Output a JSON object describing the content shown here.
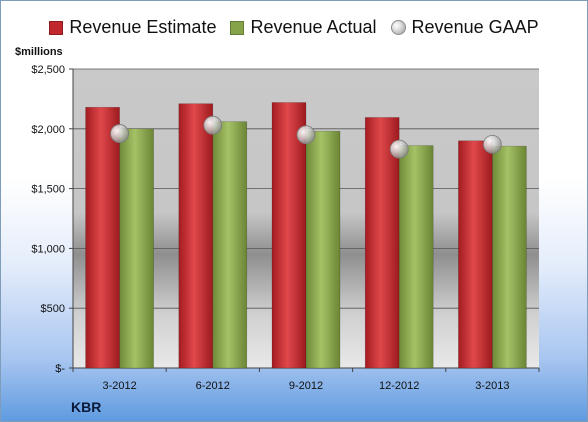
{
  "chart_data": {
    "type": "bar",
    "categories": [
      "3-2012",
      "6-2012",
      "9-2012",
      "12-2012",
      "3-2013"
    ],
    "series": [
      {
        "name": "Revenue Estimate",
        "kind": "bar",
        "color": "#c0282d",
        "values": [
          2180,
          2210,
          2220,
          2095,
          1900
        ]
      },
      {
        "name": "Revenue Actual",
        "kind": "bar",
        "color": "#86a34a",
        "values": [
          2000,
          2060,
          1980,
          1860,
          1855
        ]
      },
      {
        "name": "Revenue GAAP",
        "kind": "marker",
        "color": "#b5b5b5",
        "values": [
          1960,
          2030,
          1950,
          1830,
          1870
        ]
      }
    ],
    "ylabel": "$millions",
    "yticks": [
      {
        "value": 0,
        "label": "$-"
      },
      {
        "value": 500,
        "label": "$500"
      },
      {
        "value": 1000,
        "label": "$1,000"
      },
      {
        "value": 1500,
        "label": "$1,500"
      },
      {
        "value": 2000,
        "label": "$2,000"
      },
      {
        "value": 2500,
        "label": "$2,500"
      }
    ],
    "ylim": [
      0,
      2500
    ],
    "grid": true,
    "legend": "top"
  },
  "company": "KBR"
}
